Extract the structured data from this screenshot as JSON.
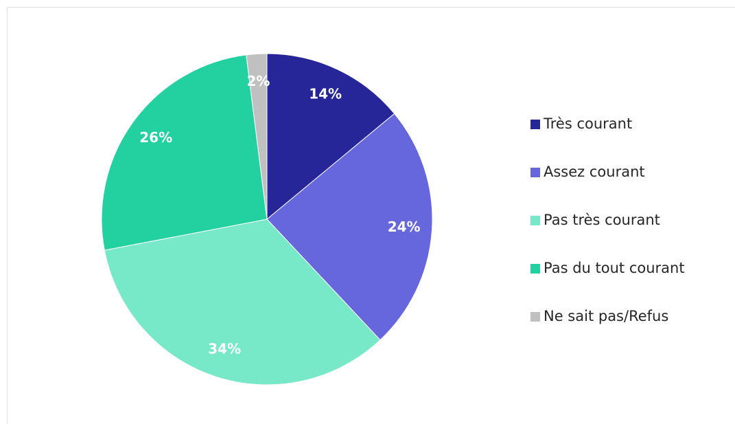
{
  "chart_data": {
    "type": "pie",
    "categories": [
      "Très courant",
      "Assez courant",
      "Pas très courant",
      "Pas du tout courant",
      "Ne sait pas/Refus"
    ],
    "values": [
      14,
      24,
      34,
      26,
      2
    ],
    "value_labels": [
      "14%",
      "24%",
      "34%",
      "26%",
      "2%"
    ],
    "colors": [
      "#262699",
      "#6666dd",
      "#77e8c8",
      "#22d0a0",
      "#c0c0c0"
    ],
    "legend": "right"
  }
}
